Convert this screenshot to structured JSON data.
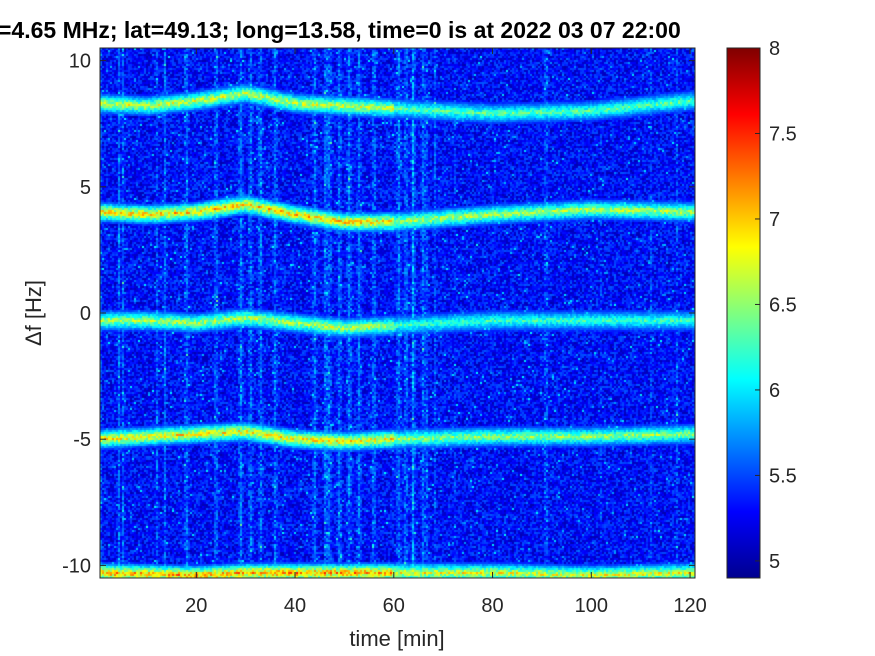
{
  "chart_data": {
    "type": "heatmap",
    "title": "=4.65 MHz;  lat=49.13; long=13.58, time=0 is at 2022 03 07 22:00",
    "xlabel": "time [min]",
    "ylabel": "Δf [Hz]",
    "xlim": [
      0.5,
      121
    ],
    "ylim": [
      -10.5,
      10.5
    ],
    "x_ticks": [
      20,
      40,
      60,
      80,
      100,
      120
    ],
    "x_tick_labels": [
      "20",
      "40",
      "60",
      "80",
      "100",
      "120"
    ],
    "y_ticks": [
      -10,
      -5,
      0,
      5,
      10
    ],
    "y_tick_labels": [
      "-10",
      "-5",
      "0",
      "5",
      "10"
    ],
    "colormap": "jet",
    "colorbar": {
      "range": [
        4.9,
        8
      ],
      "ticks": [
        5,
        5.5,
        6,
        6.5,
        7,
        7.5,
        8
      ],
      "tick_labels": [
        "5",
        "5.5",
        "6",
        "6.5",
        "7",
        "7.5",
        "8"
      ]
    },
    "background_level": 5.3,
    "bands": [
      {
        "center_hz": 8.2,
        "points": [
          [
            0.5,
            8.3
          ],
          [
            10,
            8.2
          ],
          [
            20,
            8.4
          ],
          [
            30,
            8.7
          ],
          [
            40,
            8.3
          ],
          [
            60,
            8.1
          ],
          [
            80,
            7.9
          ],
          [
            100,
            8.0
          ],
          [
            120,
            8.4
          ]
        ],
        "peak_level": 6.9
      },
      {
        "center_hz": 4.0,
        "points": [
          [
            0.5,
            4.0
          ],
          [
            10,
            3.9
          ],
          [
            20,
            4.0
          ],
          [
            30,
            4.3
          ],
          [
            40,
            3.9
          ],
          [
            50,
            3.6
          ],
          [
            60,
            3.6
          ],
          [
            80,
            3.9
          ],
          [
            100,
            4.1
          ],
          [
            120,
            4.0
          ]
        ],
        "peak_level": 7.2
      },
      {
        "center_hz": -0.2,
        "points": [
          [
            0.5,
            -0.3
          ],
          [
            10,
            -0.3
          ],
          [
            20,
            -0.4
          ],
          [
            30,
            -0.2
          ],
          [
            40,
            -0.4
          ],
          [
            50,
            -0.6
          ],
          [
            60,
            -0.5
          ],
          [
            80,
            -0.3
          ],
          [
            100,
            -0.3
          ],
          [
            120,
            -0.3
          ]
        ],
        "peak_level": 6.8
      },
      {
        "center_hz": -4.9,
        "points": [
          [
            0.5,
            -5.0
          ],
          [
            10,
            -4.9
          ],
          [
            20,
            -4.8
          ],
          [
            30,
            -4.7
          ],
          [
            40,
            -5.0
          ],
          [
            50,
            -5.1
          ],
          [
            60,
            -5.0
          ],
          [
            80,
            -4.9
          ],
          [
            100,
            -4.9
          ],
          [
            120,
            -4.8
          ]
        ],
        "peak_level": 7.1
      },
      {
        "center_hz": -10.3,
        "points": [
          [
            0.5,
            -10.3
          ],
          [
            20,
            -10.4
          ],
          [
            30,
            -10.3
          ],
          [
            40,
            -10.3
          ],
          [
            60,
            -10.3
          ],
          [
            80,
            -10.3
          ],
          [
            100,
            -10.4
          ],
          [
            120,
            -10.3
          ]
        ],
        "peak_level": 7.4
      }
    ],
    "vertical_streaks_min": [
      18,
      24,
      29,
      31,
      33,
      36,
      44,
      47,
      49,
      51,
      53,
      56,
      61,
      62.5,
      64,
      66
    ]
  }
}
